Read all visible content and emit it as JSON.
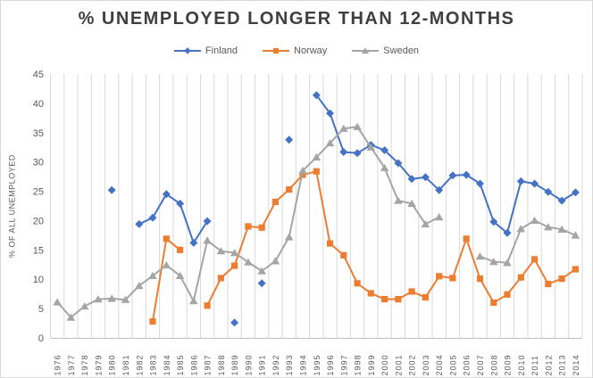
{
  "chart_data": {
    "type": "line",
    "title": "% UNEMPLOYED LONGER THAN 12-MONTHS",
    "xlabel": "",
    "ylabel": "% OF ALL UNEMPLOYED",
    "ylim": [
      0,
      45
    ],
    "ytick_step": 5,
    "grid": "vertical category gridlines only",
    "legend_position": "top",
    "categories": [
      1976,
      1977,
      1978,
      1979,
      1980,
      1981,
      1982,
      1983,
      1984,
      1985,
      1986,
      1987,
      1988,
      1989,
      1990,
      1991,
      1992,
      1993,
      1994,
      1995,
      1996,
      1997,
      1998,
      1999,
      2000,
      2001,
      2002,
      2003,
      2004,
      2005,
      2006,
      2007,
      2008,
      2009,
      2010,
      2011,
      2012,
      2013,
      2014
    ],
    "series": [
      {
        "name": "Finland",
        "color": "#4472C4",
        "marker": "diamond",
        "values": [
          null,
          null,
          null,
          null,
          25.2,
          null,
          19.4,
          20.5,
          24.5,
          22.9,
          16.2,
          19.9,
          null,
          2.6,
          null,
          9.3,
          null,
          33.8,
          null,
          41.4,
          38.3,
          31.7,
          31.5,
          32.9,
          32.0,
          29.8,
          27.1,
          27.4,
          25.2,
          27.7,
          27.8,
          26.3,
          19.8,
          17.9,
          26.7,
          26.3,
          24.9,
          23.4,
          24.8
        ]
      },
      {
        "name": "Norway",
        "color": "#ED7D31",
        "marker": "square",
        "values": [
          null,
          null,
          null,
          null,
          null,
          null,
          null,
          2.8,
          16.9,
          15.0,
          null,
          5.5,
          10.2,
          12.3,
          19.0,
          18.8,
          23.2,
          25.3,
          27.8,
          28.4,
          16.1,
          14.1,
          9.3,
          7.6,
          6.6,
          6.6,
          7.9,
          6.9,
          10.5,
          10.2,
          16.9,
          10.1,
          6.0,
          7.4,
          10.3,
          13.4,
          9.2,
          10.1,
          11.7
        ]
      },
      {
        "name": "Sweden",
        "color": "#A5A5A5",
        "marker": "triangle",
        "values": [
          6.1,
          3.5,
          5.4,
          6.6,
          6.7,
          6.5,
          8.9,
          10.6,
          12.4,
          10.6,
          6.3,
          16.6,
          14.8,
          14.5,
          12.9,
          11.4,
          13.1,
          17.2,
          28.5,
          30.8,
          33.2,
          35.7,
          36.0,
          32.5,
          29.0,
          23.4,
          22.9,
          19.4,
          20.6,
          null,
          null,
          13.9,
          13.0,
          12.8,
          18.6,
          20.0,
          18.9,
          18.5,
          17.5
        ]
      }
    ],
    "yticks": [
      0,
      5,
      10,
      15,
      20,
      25,
      30,
      35,
      40,
      45
    ]
  },
  "colors": {
    "gridline": "#D9D9D9",
    "axis_line": "#BFBFBF",
    "tick_text": "#595959",
    "title_text": "#3F3F3F"
  }
}
